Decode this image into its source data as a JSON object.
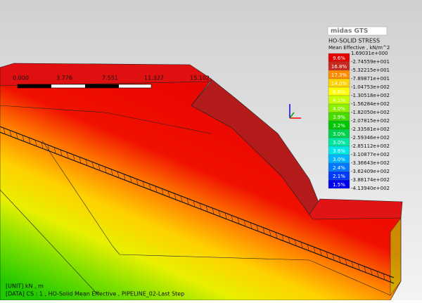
{
  "viewport": {
    "scale_labels": [
      "0.000",
      "3.776",
      "7.551",
      "11.327",
      "15.102"
    ],
    "info": [
      "[UNIT] kN , m",
      "[DATA] CS : 1 , HO-Solid Mean Effective , PIPELINE_02-Last Step"
    ]
  },
  "legend": {
    "logo": "midas GTS",
    "title": "HO-SOLID STRESS",
    "subtitle": "Mean Effective , kN/m^2",
    "levels": [
      "1.69031e+000",
      "-2.74559e+001",
      "-5.32215e+001",
      "-7.89871e+001",
      "-1.04753e+002",
      "-1.30518e+002",
      "-1.56284e+002",
      "-1.82050e+002",
      "-2.07815e+002",
      "-2.33581e+002",
      "-2.59346e+002",
      "-2.85112e+002",
      "-3.10877e+002",
      "-3.36643e+002",
      "-3.62409e+002",
      "-3.88174e+002",
      "-4.13940e+002"
    ],
    "bands": [
      {
        "percent": "9.6%",
        "color": "#e60000"
      },
      {
        "percent": "16.8%",
        "color": "#c8281e"
      },
      {
        "percent": "17.3%",
        "color": "#ff8c00"
      },
      {
        "percent": "14.0%",
        "color": "#ffd200"
      },
      {
        "percent": "8.6%",
        "color": "#ffff00"
      },
      {
        "percent": "4.1%",
        "color": "#c8ff00"
      },
      {
        "percent": "4.0%",
        "color": "#8cf000"
      },
      {
        "percent": "3.9%",
        "color": "#46dc00"
      },
      {
        "percent": "3.2%",
        "color": "#00c800"
      },
      {
        "percent": "3.0%",
        "color": "#00d24b"
      },
      {
        "percent": "3.0%",
        "color": "#00e6a0"
      },
      {
        "percent": "3.6%",
        "color": "#00e6e6"
      },
      {
        "percent": "3.0%",
        "color": "#00b4ff"
      },
      {
        "percent": "2.4%",
        "color": "#0078ff"
      },
      {
        "percent": "2.1%",
        "color": "#003cff"
      },
      {
        "percent": "1.5%",
        "color": "#0000f0"
      }
    ]
  }
}
